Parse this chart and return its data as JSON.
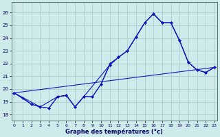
{
  "title": "Graphe des températures (°c)",
  "background_color": "#ceeaea",
  "grid_color": "#aacece",
  "line_color": "#1515bb",
  "ylim": [
    17.5,
    26.8
  ],
  "xlim": [
    -0.3,
    23.3
  ],
  "yticks": [
    18,
    19,
    20,
    21,
    22,
    23,
    24,
    25,
    26
  ],
  "xticks": [
    0,
    1,
    2,
    3,
    4,
    5,
    6,
    7,
    8,
    9,
    10,
    11,
    12,
    13,
    14,
    15,
    16,
    17,
    18,
    19,
    20,
    21,
    22,
    23
  ],
  "series": [
    {
      "x": [
        0,
        1,
        2,
        3,
        4,
        5,
        6,
        7,
        8,
        9,
        10,
        11,
        12,
        13,
        14,
        15,
        16,
        17,
        18,
        19,
        20,
        21,
        22,
        23
      ],
      "y": [
        19.7,
        19.3,
        18.8,
        18.6,
        18.5,
        19.4,
        19.5,
        18.6,
        19.4,
        19.4,
        20.4,
        21.9,
        22.5,
        23.0,
        24.1,
        25.2,
        25.9,
        25.2,
        25.2,
        23.8,
        22.1,
        21.5,
        21.3,
        21.7
      ]
    },
    {
      "x": [
        0,
        3,
        5,
        6,
        7,
        8,
        9,
        10,
        11,
        12,
        13,
        14,
        15,
        16,
        17,
        18,
        19,
        20,
        21,
        22,
        23
      ],
      "y": [
        19.7,
        18.6,
        19.4,
        19.5,
        18.6,
        19.4,
        19.4,
        20.4,
        22.0,
        22.5,
        23.0,
        24.1,
        25.2,
        25.9,
        25.2,
        25.2,
        23.8,
        22.1,
        21.5,
        21.3,
        21.7
      ]
    },
    {
      "x": [
        0,
        2,
        3,
        4,
        5,
        6,
        7,
        8,
        11,
        12,
        13,
        14,
        15,
        16,
        17,
        18,
        19,
        20,
        21,
        22,
        23
      ],
      "y": [
        19.7,
        18.8,
        18.6,
        18.5,
        19.4,
        19.5,
        18.6,
        19.4,
        21.9,
        22.5,
        23.0,
        24.1,
        25.2,
        25.9,
        25.2,
        25.2,
        23.8,
        22.1,
        21.5,
        21.3,
        21.7
      ]
    },
    {
      "x": [
        0,
        23
      ],
      "y": [
        19.7,
        21.7
      ]
    }
  ]
}
